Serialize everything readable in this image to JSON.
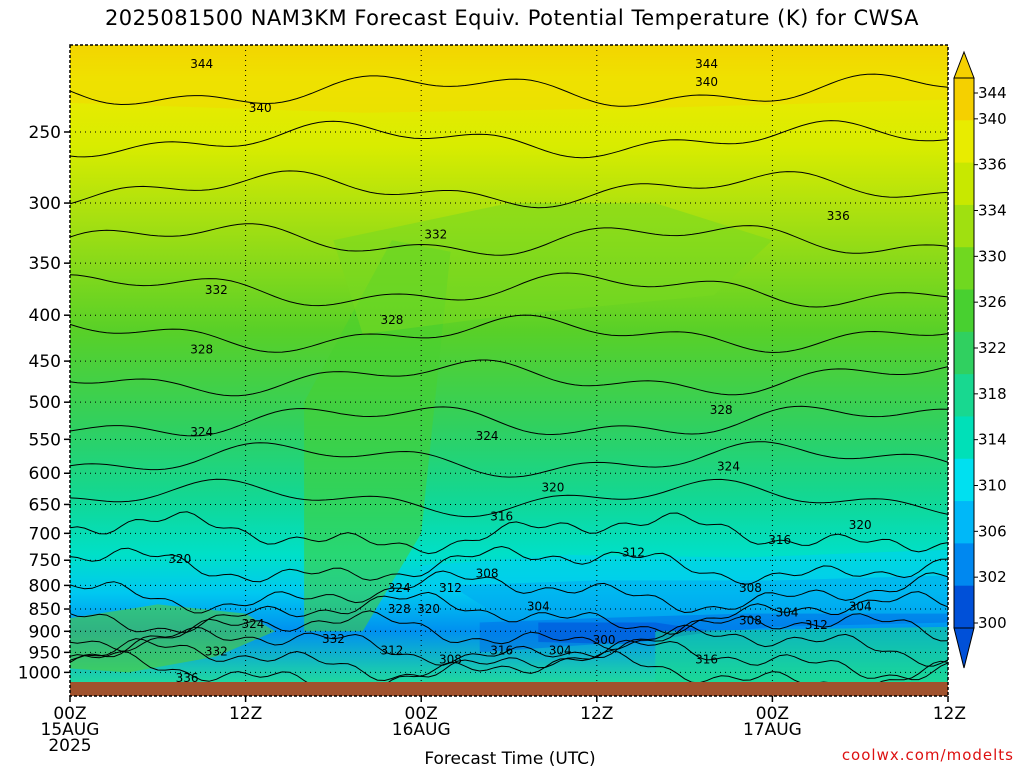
{
  "title": "2025081500 NAM3KM Forecast Equiv. Potential Temperature (K) for CWSA",
  "watermark": "coolwx.com/modelts",
  "chart_data": {
    "type": "heatmap",
    "title": "2025081500 NAM3KM Forecast Equiv. Potential Temperature (K) for CWSA",
    "xlabel": "Forecast Time (UTC)",
    "ylabel": "",
    "x_ticks": [
      {
        "hour": 0,
        "lines": [
          "00Z",
          "15AUG",
          "2025"
        ]
      },
      {
        "hour": 12,
        "lines": [
          "12Z"
        ]
      },
      {
        "hour": 24,
        "lines": [
          "00Z",
          "16AUG"
        ]
      },
      {
        "hour": 36,
        "lines": [
          "12Z"
        ]
      },
      {
        "hour": 48,
        "lines": [
          "00Z",
          "17AUG"
        ]
      },
      {
        "hour": 60,
        "lines": [
          "12Z"
        ]
      }
    ],
    "xlim": [
      0,
      60
    ],
    "y_ticks": [
      250,
      300,
      350,
      400,
      450,
      500,
      550,
      600,
      650,
      700,
      750,
      800,
      850,
      900,
      950,
      1000
    ],
    "ylim": [
      200,
      1025
    ],
    "y_scale": "log-pressure",
    "colorbar": {
      "levels": [
        300,
        302,
        306,
        310,
        314,
        318,
        322,
        326,
        330,
        334,
        336,
        340,
        344
      ],
      "tick_labels": [
        "344",
        "340",
        "336",
        "334",
        "330",
        "326",
        "322",
        "318",
        "314",
        "310",
        "306",
        "302",
        "300"
      ],
      "colors": [
        "#0050d8",
        "#0088f0",
        "#00b8f8",
        "#00e0f0",
        "#00e0b8",
        "#18d890",
        "#30d060",
        "#48d030",
        "#70d820",
        "#a0e010",
        "#c8e800",
        "#e8ec00",
        "#f5d000"
      ]
    },
    "contour_interval": 4,
    "contour_labels": [
      {
        "value": "344",
        "hour": 9.0,
        "p": 210
      },
      {
        "value": "344",
        "hour": 43.5,
        "p": 210
      },
      {
        "value": "340",
        "hour": 43.5,
        "p": 220
      },
      {
        "value": "340",
        "hour": 13.0,
        "p": 235
      },
      {
        "value": "336",
        "hour": 52.5,
        "p": 310
      },
      {
        "value": "332",
        "hour": 25.0,
        "p": 325
      },
      {
        "value": "332",
        "hour": 10.0,
        "p": 375
      },
      {
        "value": "328",
        "hour": 22.0,
        "p": 405
      },
      {
        "value": "328",
        "hour": 9.0,
        "p": 437
      },
      {
        "value": "328",
        "hour": 44.5,
        "p": 510
      },
      {
        "value": "324",
        "hour": 9.0,
        "p": 540
      },
      {
        "value": "324",
        "hour": 28.5,
        "p": 545
      },
      {
        "value": "324",
        "hour": 45.0,
        "p": 590
      },
      {
        "value": "320",
        "hour": 33.0,
        "p": 622
      },
      {
        "value": "320",
        "hour": 54.0,
        "p": 685
      },
      {
        "value": "316",
        "hour": 29.5,
        "p": 670
      },
      {
        "value": "316",
        "hour": 48.5,
        "p": 712
      },
      {
        "value": "312",
        "hour": 38.5,
        "p": 735
      },
      {
        "value": "320",
        "hour": 7.5,
        "p": 748
      },
      {
        "value": "308",
        "hour": 28.5,
        "p": 776
      },
      {
        "value": "324",
        "hour": 22.5,
        "p": 805
      },
      {
        "value": "312",
        "hour": 26.0,
        "p": 805
      },
      {
        "value": "308",
        "hour": 46.5,
        "p": 805
      },
      {
        "value": "304",
        "hour": 32.0,
        "p": 845
      },
      {
        "value": "304",
        "hour": 54.0,
        "p": 845
      },
      {
        "value": "328",
        "hour": 22.5,
        "p": 850
      },
      {
        "value": "320",
        "hour": 24.5,
        "p": 850
      },
      {
        "value": "304",
        "hour": 49.0,
        "p": 858
      },
      {
        "value": "308",
        "hour": 46.5,
        "p": 875
      },
      {
        "value": "312",
        "hour": 51.0,
        "p": 885
      },
      {
        "value": "324",
        "hour": 12.5,
        "p": 883
      },
      {
        "value": "332",
        "hour": 18.0,
        "p": 918
      },
      {
        "value": "300",
        "hour": 36.5,
        "p": 920
      },
      {
        "value": "312",
        "hour": 22.0,
        "p": 945
      },
      {
        "value": "316",
        "hour": 29.5,
        "p": 945
      },
      {
        "value": "304",
        "hour": 33.5,
        "p": 945
      },
      {
        "value": "332",
        "hour": 10.0,
        "p": 948
      },
      {
        "value": "308",
        "hour": 26.0,
        "p": 967
      },
      {
        "value": "316",
        "hour": 43.5,
        "p": 967
      },
      {
        "value": "336",
        "hour": 8.0,
        "p": 1015
      }
    ]
  }
}
